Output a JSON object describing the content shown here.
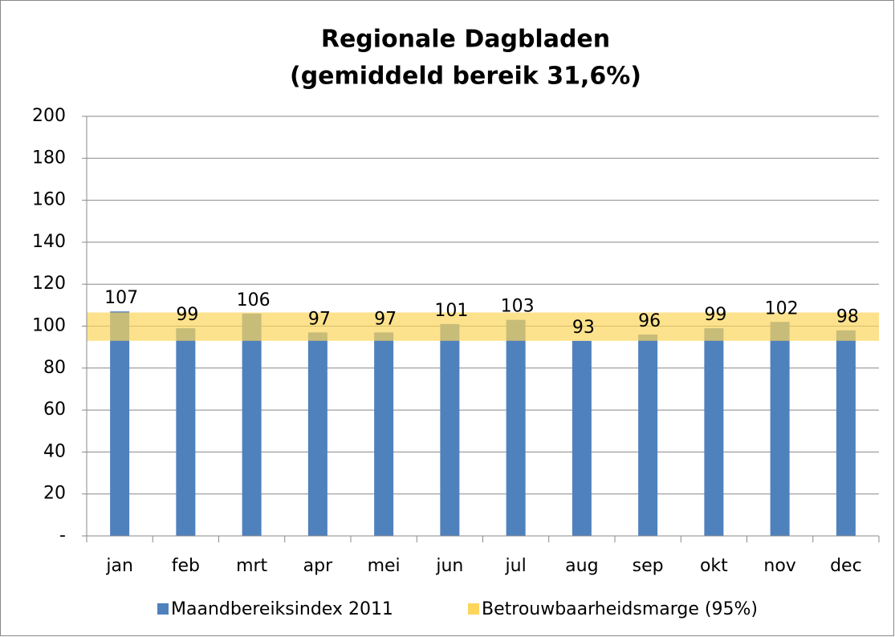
{
  "chart_data": {
    "type": "bar",
    "title": [
      "Regionale Dagbladen",
      "(gemiddeld bereik 31,6%)"
    ],
    "categories": [
      "jan",
      "feb",
      "mrt",
      "apr",
      "mei",
      "jun",
      "jul",
      "aug",
      "sep",
      "okt",
      "nov",
      "dec"
    ],
    "series": [
      {
        "name": "Maandbereiksindex 2011",
        "color": "#4f81bd",
        "values": [
          107,
          99,
          106,
          97,
          97,
          101,
          103,
          93,
          96,
          99,
          102,
          98
        ]
      }
    ],
    "band": {
      "name": "Betrouwbaarheidsmarge (95%)",
      "color": "#fcd55c",
      "lower": 93,
      "upper": 106.5
    },
    "ylim": [
      0,
      200
    ],
    "yticks": [
      {
        "value": 0,
        "label": "-"
      },
      20,
      40,
      60,
      80,
      100,
      120,
      140,
      160,
      180,
      200
    ],
    "grid": true
  }
}
